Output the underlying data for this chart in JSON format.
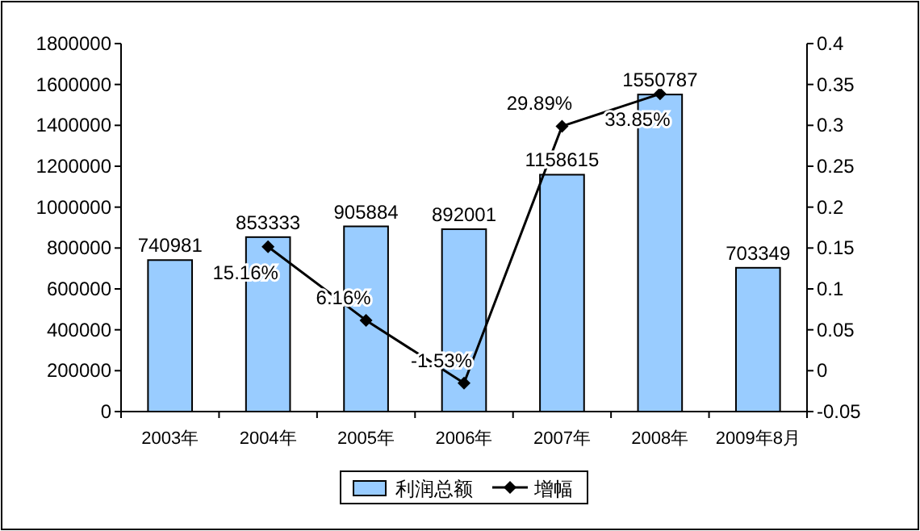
{
  "chart_data": {
    "type": "bar",
    "categories": [
      "2003年",
      "2004年",
      "2005年",
      "2006年",
      "2007年",
      "2008年",
      "2009年8月"
    ],
    "series": [
      {
        "name": "利润总额",
        "color": "#99ccff",
        "values": [
          740981,
          853333,
          905884,
          892001,
          1158615,
          1550787,
          703349
        ],
        "value_labels": [
          "740981",
          "853333",
          "905884",
          "892001",
          "1158615",
          "1550787",
          "703349"
        ]
      },
      {
        "name": "增幅",
        "type": "line",
        "axis": "y2",
        "color": "#000000",
        "marker": "diamond",
        "values": [
          null,
          0.1516,
          0.0616,
          -0.0153,
          0.2989,
          0.3385,
          null
        ],
        "value_labels": [
          null,
          "15.16%",
          "6.16%",
          "-1.53%",
          "29.89%",
          "33.85%",
          null
        ]
      }
    ],
    "ylim": [
      0,
      1800000
    ],
    "yticks": [
      0,
      200000,
      400000,
      600000,
      800000,
      1000000,
      1200000,
      1400000,
      1600000,
      1800000
    ],
    "y2lim": [
      -0.05,
      0.4
    ],
    "y2ticks": [
      -0.05,
      0,
      0.05,
      0.1,
      0.15,
      0.2,
      0.25,
      0.3,
      0.35,
      0.4
    ],
    "legend": "bottom",
    "grid": false
  }
}
